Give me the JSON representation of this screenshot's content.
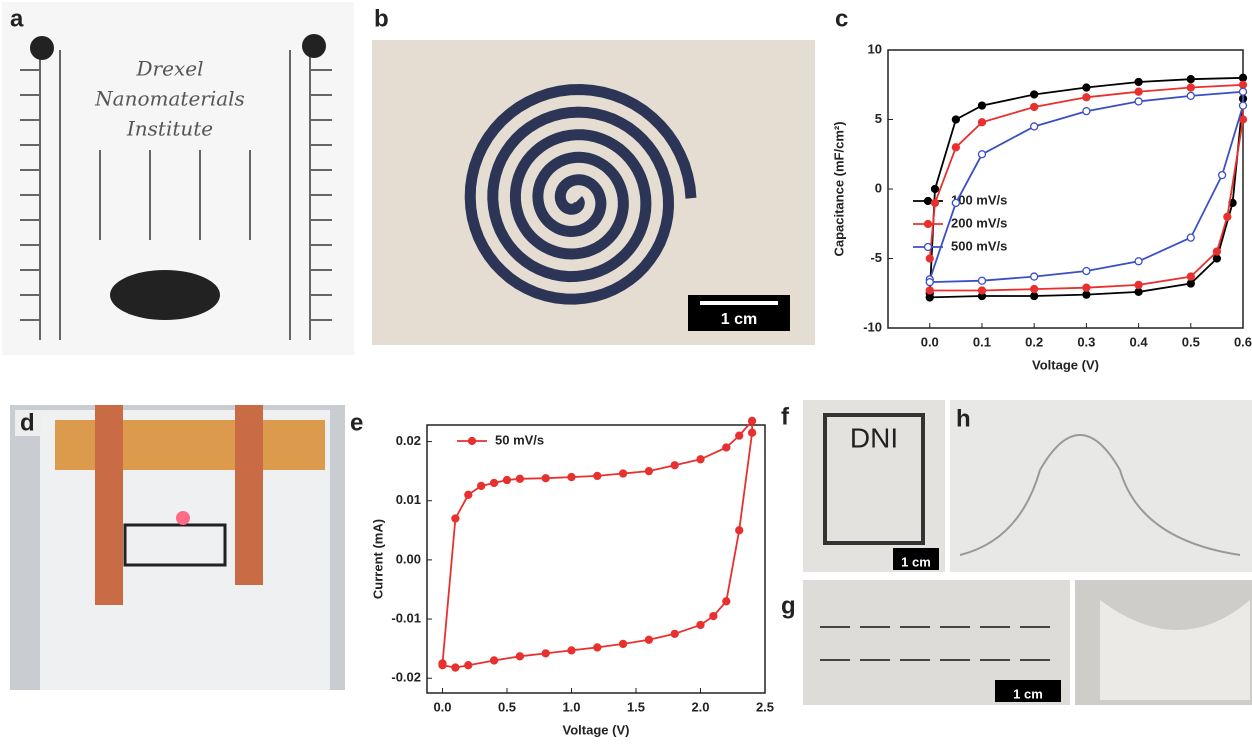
{
  "panels": {
    "a": {
      "label": "a",
      "text_lines": [
        "Drexel",
        "Nanomaterials",
        "Institute"
      ]
    },
    "b": {
      "label": "b",
      "scale_bar": "1 cm"
    },
    "c": {
      "label": "c"
    },
    "d": {
      "label": "d"
    },
    "e": {
      "label": "e"
    },
    "f": {
      "label": "f",
      "text": "DNI",
      "scale_bar": "1 cm"
    },
    "g": {
      "label": "g",
      "scale_bar": "1 cm"
    },
    "h": {
      "label": "h"
    }
  },
  "chart_data": [
    {
      "type": "line",
      "x_label": "Voltage (V)",
      "y_label": "Capacitance (mF/cm²)",
      "xlim": [
        -0.08,
        0.6
      ],
      "ylim": [
        -10,
        10
      ],
      "xticks": [
        {
          "value": 0,
          "label": "0.0"
        },
        0.1,
        0.2,
        0.3,
        0.4,
        0.5,
        0.6
      ],
      "yticks": [
        -10,
        -5,
        0,
        5,
        10
      ],
      "legend": "center left",
      "series": [
        {
          "name": "100 mV/s",
          "color": "#000000",
          "markers": "filled",
          "x": [
            0,
            0.01,
            0.05,
            0.1,
            0.2,
            0.3,
            0.4,
            0.5,
            0.6,
            0.6,
            0.58,
            0.55,
            0.5,
            0.4,
            0.3,
            0.2,
            0.1,
            0
          ],
          "values": [
            -7.5,
            0,
            5,
            6,
            6.8,
            7.3,
            7.7,
            7.9,
            8,
            6.5,
            -1,
            -5,
            -6.8,
            -7.4,
            -7.6,
            -7.7,
            -7.7,
            -7.8
          ]
        },
        {
          "name": "200 mV/s",
          "color": "#e8312f",
          "markers": "filled",
          "x": [
            0,
            0.01,
            0.05,
            0.1,
            0.2,
            0.3,
            0.4,
            0.5,
            0.6,
            0.6,
            0.57,
            0.55,
            0.5,
            0.4,
            0.3,
            0.2,
            0.1,
            0
          ],
          "values": [
            -5,
            -1,
            3,
            4.8,
            5.9,
            6.6,
            7,
            7.3,
            7.5,
            5,
            -2,
            -4.5,
            -6.3,
            -6.9,
            -7.1,
            -7.2,
            -7.3,
            -7.3
          ]
        },
        {
          "name": "500 mV/s",
          "color": "#3b4fc4",
          "markers": "open",
          "x": [
            0,
            0.05,
            0.1,
            0.2,
            0.3,
            0.4,
            0.5,
            0.6,
            0.6,
            0.56,
            0.5,
            0.4,
            0.3,
            0.2,
            0.1,
            0
          ],
          "values": [
            -6.5,
            -1,
            2.5,
            4.5,
            5.6,
            6.3,
            6.7,
            7,
            6,
            1,
            -3.5,
            -5.2,
            -5.9,
            -6.3,
            -6.6,
            -6.7
          ]
        }
      ]
    },
    {
      "type": "line",
      "x_label": "Voltage (V)",
      "y_label": "Current (mA)",
      "xlim": [
        -0.12,
        2.5
      ],
      "ylim": [
        -0.0225,
        0.0228
      ],
      "xticks": [
        {
          "value": 0,
          "label": "0.0"
        },
        0.5,
        {
          "value": 1,
          "label": "1.0"
        },
        1.5,
        {
          "value": 2,
          "label": "2.0"
        },
        2.5
      ],
      "yticks": [
        -0.02,
        -0.01,
        {
          "value": 0,
          "label": "0.00"
        },
        0.01,
        0.02
      ],
      "legend": "upper left",
      "series": [
        {
          "name": "50 mV/s",
          "color": "#e8312f",
          "markers": "filled",
          "x": [
            0,
            0.1,
            0.2,
            0.3,
            0.4,
            0.5,
            0.6,
            0.8,
            1.0,
            1.2,
            1.4,
            1.6,
            1.8,
            2.0,
            2.2,
            2.3,
            2.4,
            2.4,
            2.3,
            2.2,
            2.1,
            2.0,
            1.8,
            1.6,
            1.4,
            1.2,
            1.0,
            0.8,
            0.6,
            0.4,
            0.2,
            0.1,
            0
          ],
          "values": [
            -0.0175,
            0.007,
            0.011,
            0.0125,
            0.013,
            0.0135,
            0.0137,
            0.0138,
            0.014,
            0.0142,
            0.0146,
            0.015,
            0.016,
            0.017,
            0.019,
            0.021,
            0.0235,
            0.0215,
            0.005,
            -0.007,
            -0.0095,
            -0.011,
            -0.0125,
            -0.0135,
            -0.0142,
            -0.0148,
            -0.0153,
            -0.0158,
            -0.0163,
            -0.017,
            -0.0178,
            -0.0182,
            -0.0178
          ]
        }
      ]
    }
  ]
}
